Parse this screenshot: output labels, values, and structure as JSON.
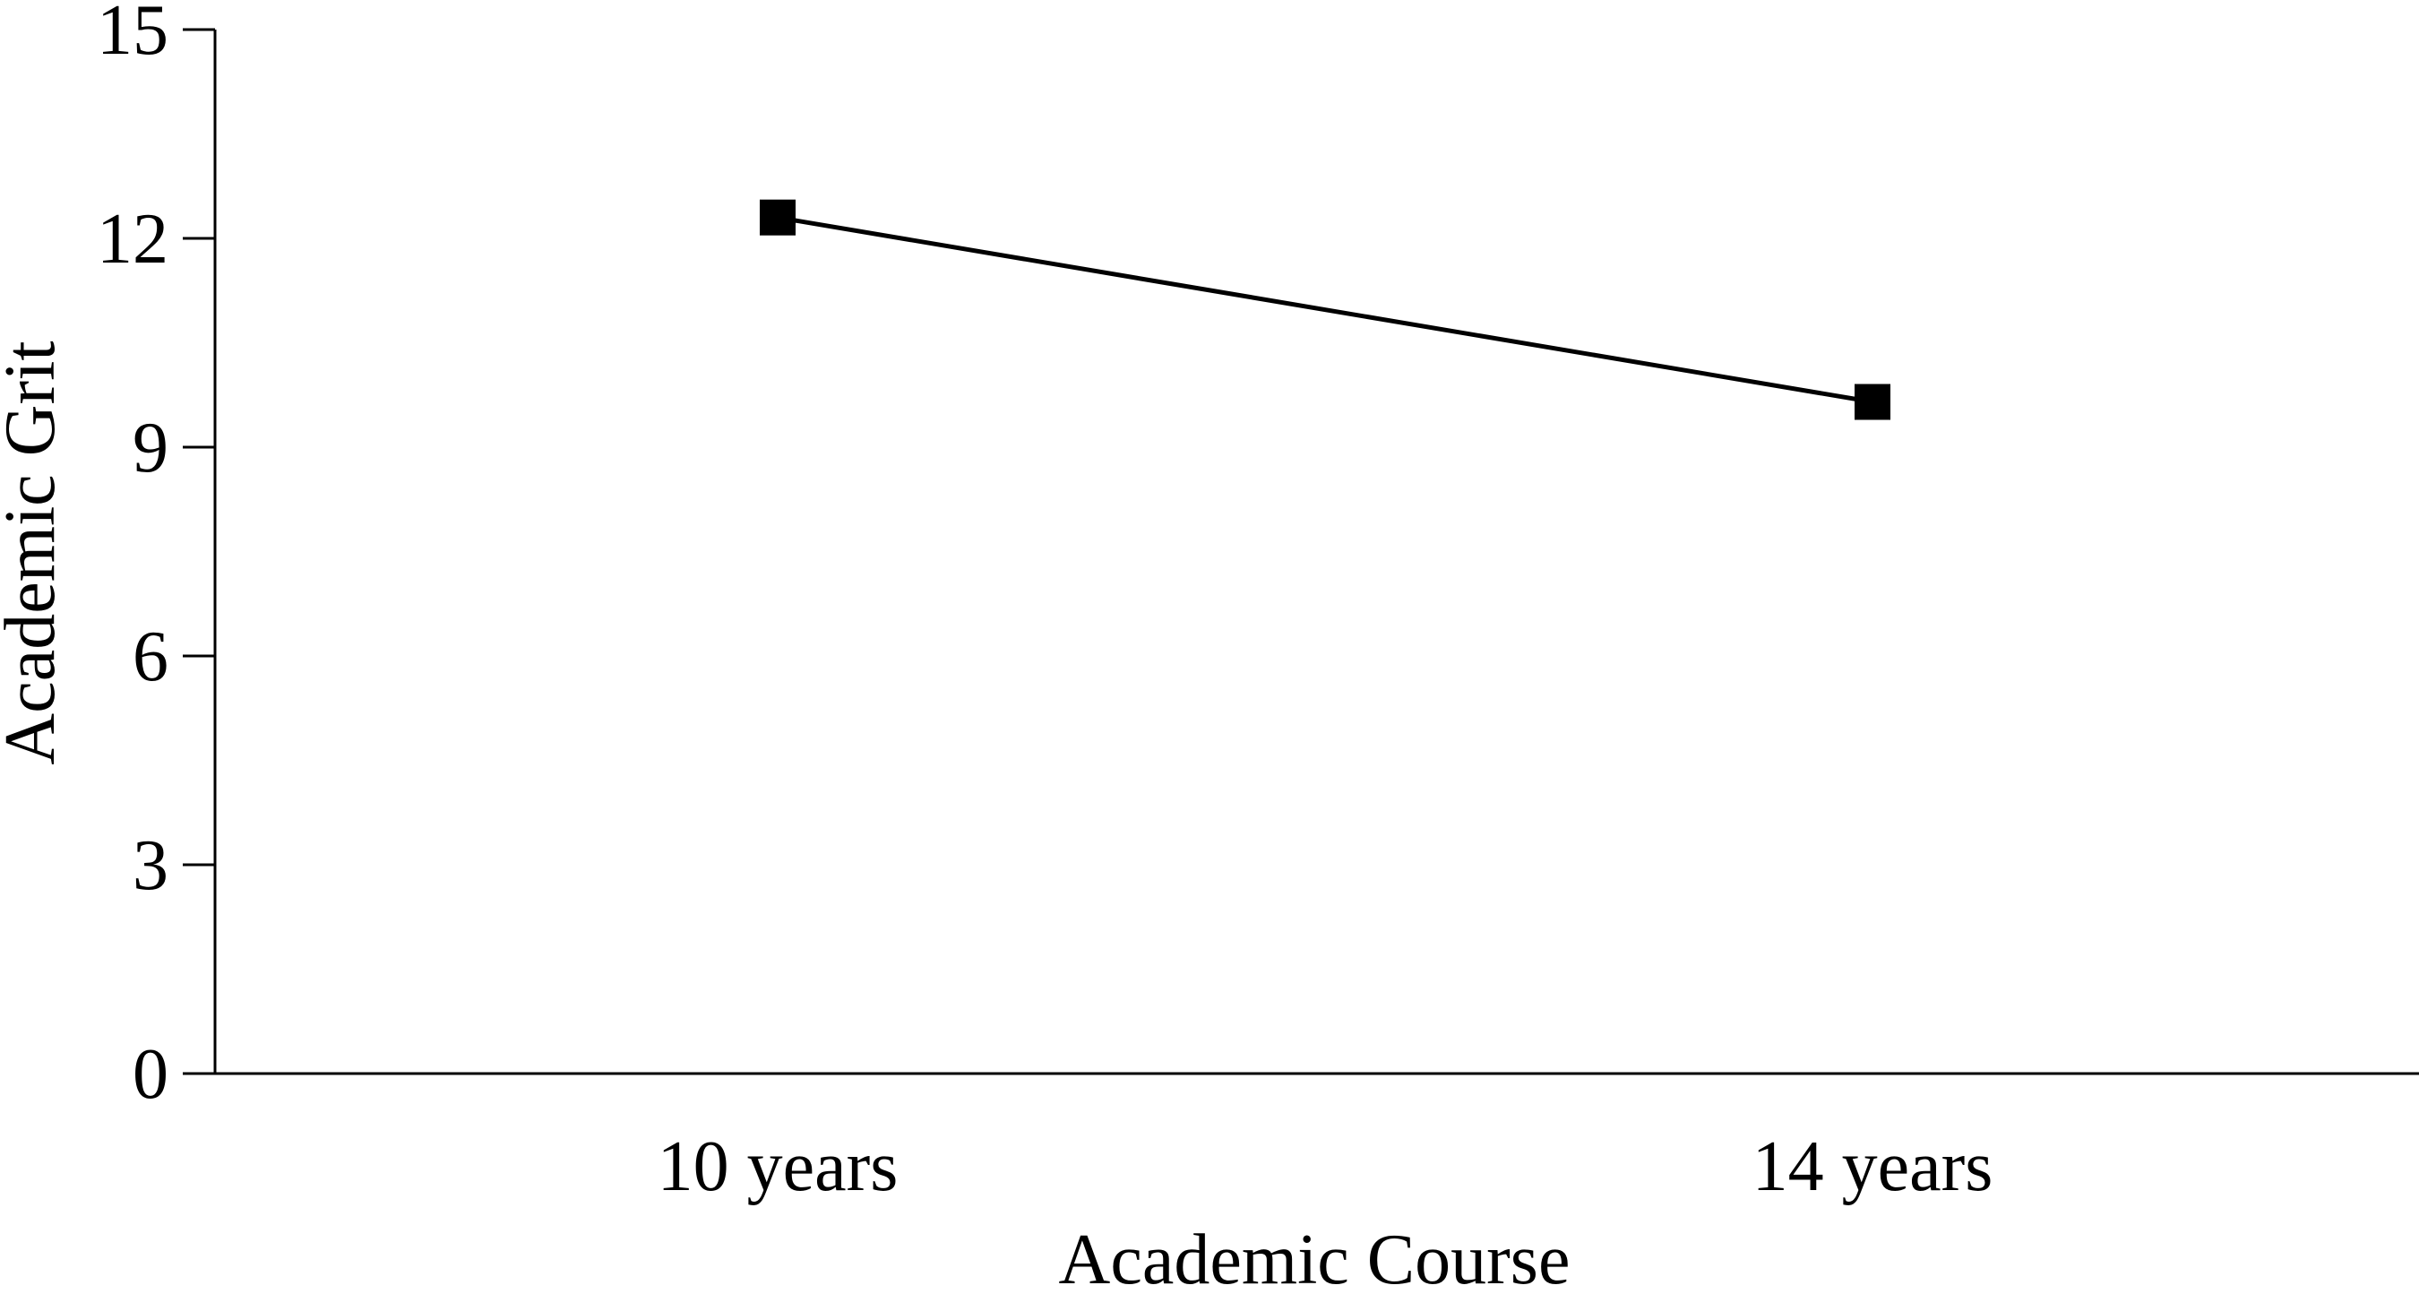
{
  "chart_data": {
    "type": "line",
    "categories": [
      "10 years",
      "14 years"
    ],
    "series": [
      {
        "values": [
          12.3,
          9.65
        ]
      }
    ],
    "xlabel": "Academic Course",
    "ylabel": "Academic Grit",
    "ylim": [
      0,
      15
    ],
    "yticks": [
      "0",
      "3",
      "6",
      "9",
      "12",
      "15"
    ],
    "grid": false,
    "marker": "square",
    "line_color": "#000000",
    "marker_color": "#000000"
  }
}
